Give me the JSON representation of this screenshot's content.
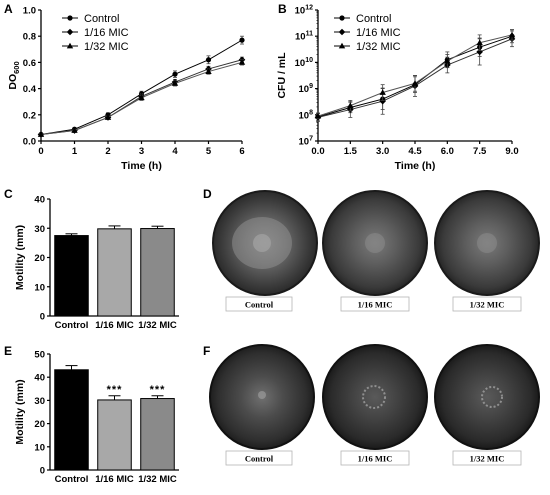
{
  "panels": {
    "A": "A",
    "B": "B",
    "C": "C",
    "D": "D",
    "E": "E",
    "F": "F"
  },
  "chart_data": [
    {
      "id": "A",
      "type": "line",
      "xlabel": "Time (h)",
      "ylabel_main": "DO",
      "ylabel_sub": "600",
      "x": [
        0,
        1,
        2,
        3,
        4,
        5,
        6
      ],
      "xlim": [
        0,
        6
      ],
      "ylim": [
        0,
        1.0
      ],
      "xticks": [
        "0",
        "1",
        "2",
        "3",
        "4",
        "5",
        "6"
      ],
      "yticks": [
        "0.0",
        "0.2",
        "0.4",
        "0.6",
        "0.8",
        "1.0"
      ],
      "legend_position": "top-left",
      "series": [
        {
          "name": "Control",
          "values": [
            0.05,
            0.09,
            0.2,
            0.36,
            0.51,
            0.62,
            0.77
          ],
          "err": [
            0.005,
            0.01,
            0.015,
            0.02,
            0.025,
            0.03,
            0.03
          ]
        },
        {
          "name": "1/16 MIC",
          "values": [
            0.05,
            0.08,
            0.18,
            0.34,
            0.45,
            0.55,
            0.62
          ],
          "err": [
            0.005,
            0.01,
            0.01,
            0.02,
            0.02,
            0.02,
            0.02
          ]
        },
        {
          "name": "1/32 MIC",
          "values": [
            0.05,
            0.08,
            0.18,
            0.33,
            0.44,
            0.53,
            0.6
          ],
          "err": [
            0.005,
            0.01,
            0.01,
            0.02,
            0.02,
            0.02,
            0.02
          ]
        }
      ]
    },
    {
      "id": "B",
      "type": "line",
      "xlabel": "Time (h)",
      "ylabel": "CFU / mL",
      "yscale": "log",
      "x": [
        0,
        1.5,
        3.0,
        4.5,
        6.0,
        7.5,
        9.0
      ],
      "xlim": [
        0,
        9
      ],
      "ylim_exp": [
        7,
        12
      ],
      "xticks": [
        "0.0",
        "1.5",
        "3.0",
        "4.5",
        "6.0",
        "7.5",
        "9.0"
      ],
      "yticks_base": "10",
      "yticks_exp": [
        "7",
        "8",
        "9",
        "10",
        "11",
        "12"
      ],
      "legend_position": "top-left",
      "series": [
        {
          "name": "Control",
          "log10_values": [
            7.92,
            8.28,
            8.6,
            9.15,
            10.1,
            10.58,
            11.0
          ],
          "err": [
            0.15,
            0.2,
            0.4,
            0.3,
            0.3,
            0.35,
            0.25
          ]
        },
        {
          "name": "1/16 MIC",
          "log10_values": [
            7.9,
            8.2,
            8.52,
            9.1,
            9.9,
            10.4,
            10.9
          ],
          "err": [
            0.15,
            0.3,
            0.5,
            0.4,
            0.3,
            0.5,
            0.3
          ]
        },
        {
          "name": "1/32 MIC",
          "log10_values": [
            7.95,
            8.35,
            8.85,
            9.2,
            10.05,
            10.75,
            11.05
          ],
          "err": [
            0.1,
            0.2,
            0.3,
            0.3,
            0.25,
            0.3,
            0.2
          ]
        }
      ]
    },
    {
      "id": "C",
      "type": "bar",
      "ylabel": "Motility (mm)",
      "categories": [
        "Control",
        "1/16 MIC",
        "1/32 MIC"
      ],
      "values": [
        27.5,
        29.8,
        29.9
      ],
      "err": [
        0.6,
        1.0,
        0.8
      ],
      "ylim": [
        0,
        40
      ],
      "yticks": [
        "0",
        "10",
        "20",
        "30",
        "40"
      ],
      "bar_colors": [
        "#000000",
        "#a8a8a8",
        "#8a8a8a"
      ],
      "significance": [
        "",
        "",
        ""
      ]
    },
    {
      "id": "E",
      "type": "bar",
      "ylabel": "Motility (mm)",
      "categories": [
        "Control",
        "1/16 MIC",
        "1/32 MIC"
      ],
      "values": [
        43.2,
        30.2,
        30.8
      ],
      "err": [
        1.8,
        1.8,
        1.2
      ],
      "ylim": [
        0,
        50
      ],
      "yticks": [
        "0",
        "10",
        "20",
        "30",
        "40",
        "50"
      ],
      "bar_colors": [
        "#000000",
        "#a8a8a8",
        "#8a8a8a"
      ],
      "significance": [
        "",
        "***",
        "***"
      ]
    }
  ],
  "plates_D": {
    "labels": [
      "Control",
      "1/16 MIC",
      "1/32 MIC"
    ]
  },
  "plates_F": {
    "labels": [
      "Control",
      "1/16 MIC",
      "1/32 MIC"
    ]
  }
}
